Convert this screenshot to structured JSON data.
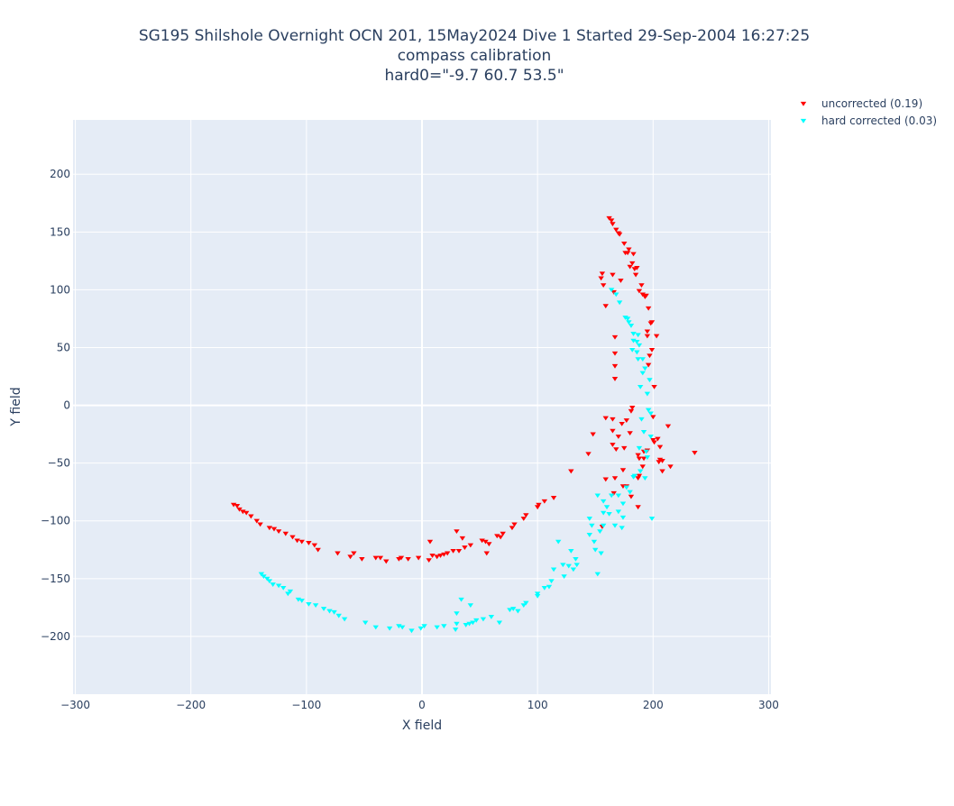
{
  "chart_data": {
    "type": "scatter",
    "title_lines": [
      "SG195 Shilshole Overnight OCN 201, 15May2024 Dive 1 Started 29-Sep-2004 16:27:25",
      "compass calibration",
      "hard0=\"-9.7 60.7 53.5\""
    ],
    "xlabel": "X field",
    "ylabel": "Y field",
    "xlim": [
      -302,
      302
    ],
    "ylim": [
      -250,
      247
    ],
    "xticks": [
      -300,
      -200,
      -100,
      0,
      100,
      200,
      300
    ],
    "yticks": [
      -200,
      -150,
      -100,
      -50,
      0,
      50,
      100,
      150,
      200
    ],
    "xtick_labels": [
      "−300",
      "−200",
      "−100",
      "0",
      "100",
      "200",
      "300"
    ],
    "ytick_labels": [
      "−200",
      "−150",
      "−100",
      "−50",
      "0",
      "50",
      "100",
      "150",
      "200"
    ],
    "grid": true,
    "legend_position": "top-right",
    "marker": "triangle-down",
    "colors": {
      "plot_bg": "#e5ecf6",
      "grid": "#ffffff",
      "text": "#2a3f5f"
    },
    "series": [
      {
        "name": "uncorrected (0.19)",
        "color": "#ff0000",
        "points": [
          [
            -163,
            -86
          ],
          [
            -160,
            -87
          ],
          [
            -158,
            -90
          ],
          [
            -155,
            -92
          ],
          [
            -152,
            -93
          ],
          [
            -148,
            -96
          ],
          [
            -143,
            -100
          ],
          [
            -140,
            -103
          ],
          [
            -132,
            -106
          ],
          [
            -128,
            -107
          ],
          [
            -124,
            -109
          ],
          [
            -118,
            -111
          ],
          [
            -112,
            -114
          ],
          [
            -108,
            -117
          ],
          [
            -104,
            -118
          ],
          [
            -98,
            -119
          ],
          [
            -93,
            -121
          ],
          [
            -90,
            -125
          ],
          [
            -73,
            -128
          ],
          [
            -62,
            -131
          ],
          [
            -59,
            -128
          ],
          [
            -52,
            -133
          ],
          [
            -40,
            -132
          ],
          [
            -36,
            -132
          ],
          [
            -31,
            -135
          ],
          [
            -20,
            -133
          ],
          [
            -18,
            -132
          ],
          [
            -12,
            -133
          ],
          [
            -3,
            -132
          ],
          [
            6,
            -134
          ],
          [
            7,
            -118
          ],
          [
            9,
            -130
          ],
          [
            13,
            -131
          ],
          [
            16,
            -130
          ],
          [
            19,
            -129
          ],
          [
            22,
            -128
          ],
          [
            27,
            -126
          ],
          [
            30,
            -109
          ],
          [
            32,
            -126
          ],
          [
            35,
            -115
          ],
          [
            37,
            -123
          ],
          [
            42,
            -121
          ],
          [
            52,
            -117
          ],
          [
            55,
            -118
          ],
          [
            56,
            -128
          ],
          [
            58,
            -120
          ],
          [
            65,
            -113
          ],
          [
            68,
            -114
          ],
          [
            70,
            -111
          ],
          [
            78,
            -106
          ],
          [
            80,
            -103
          ],
          [
            88,
            -98
          ],
          [
            90,
            -95
          ],
          [
            100,
            -88
          ],
          [
            101,
            -86
          ],
          [
            106,
            -83
          ],
          [
            114,
            -80
          ],
          [
            129,
            -57
          ],
          [
            144,
            -42
          ],
          [
            148,
            -25
          ],
          [
            156,
            -105
          ],
          [
            155,
            110
          ],
          [
            156,
            114
          ],
          [
            157,
            104
          ],
          [
            159,
            86
          ],
          [
            159,
            -64
          ],
          [
            159,
            -11
          ],
          [
            162,
            162
          ],
          [
            164,
            160
          ],
          [
            165,
            157
          ],
          [
            165,
            113
          ],
          [
            165,
            -34
          ],
          [
            165,
            -22
          ],
          [
            165,
            -12
          ],
          [
            166,
            -76
          ],
          [
            166,
            98
          ],
          [
            167,
            59
          ],
          [
            167,
            45
          ],
          [
            167,
            34
          ],
          [
            167,
            23
          ],
          [
            167,
            -63
          ],
          [
            168,
            -38
          ],
          [
            168,
            152
          ],
          [
            170,
            149
          ],
          [
            170,
            -27
          ],
          [
            171,
            148
          ],
          [
            172,
            108
          ],
          [
            173,
            -16
          ],
          [
            174,
            -70
          ],
          [
            174,
            -56
          ],
          [
            175,
            -37
          ],
          [
            175,
            140
          ],
          [
            176,
            132
          ],
          [
            177,
            -70
          ],
          [
            177,
            -13
          ],
          [
            178,
            132
          ],
          [
            179,
            135
          ],
          [
            180,
            120
          ],
          [
            180,
            -24
          ],
          [
            181,
            -79
          ],
          [
            181,
            -5
          ],
          [
            182,
            123
          ],
          [
            182,
            -2
          ],
          [
            183,
            131
          ],
          [
            184,
            118
          ],
          [
            185,
            113
          ],
          [
            186,
            119
          ],
          [
            187,
            -43
          ],
          [
            187,
            -63
          ],
          [
            187,
            -88
          ],
          [
            188,
            -46
          ],
          [
            188,
            -61
          ],
          [
            188,
            99
          ],
          [
            190,
            104
          ],
          [
            191,
            -53
          ],
          [
            191,
            96
          ],
          [
            192,
            -40
          ],
          [
            192,
            -46
          ],
          [
            193,
            94
          ],
          [
            194,
            95
          ],
          [
            195,
            64
          ],
          [
            195,
            60
          ],
          [
            195,
            -39
          ],
          [
            196,
            84
          ],
          [
            196,
            35
          ],
          [
            197,
            43
          ],
          [
            198,
            71
          ],
          [
            199,
            48
          ],
          [
            199,
            72
          ],
          [
            200,
            -10
          ],
          [
            200,
            -30
          ],
          [
            201,
            16
          ],
          [
            201,
            -32
          ],
          [
            203,
            60
          ],
          [
            204,
            -29
          ],
          [
            205,
            -49
          ],
          [
            206,
            -47
          ],
          [
            206,
            -36
          ],
          [
            208,
            -48
          ],
          [
            208,
            -57
          ],
          [
            213,
            -18
          ],
          [
            215,
            -53
          ],
          [
            236,
            -41
          ]
        ]
      },
      {
        "name": "hard corrected (0.03)",
        "color": "#00ffff",
        "points": [
          [
            -139,
            -146
          ],
          [
            -137,
            -148
          ],
          [
            -134,
            -150
          ],
          [
            -132,
            -152
          ],
          [
            -129,
            -155
          ],
          [
            -124,
            -156
          ],
          [
            -120,
            -158
          ],
          [
            -116,
            -163
          ],
          [
            -114,
            -161
          ],
          [
            -107,
            -168
          ],
          [
            -104,
            -169
          ],
          [
            -98,
            -172
          ],
          [
            -92,
            -173
          ],
          [
            -85,
            -176
          ],
          [
            -80,
            -178
          ],
          [
            -76,
            -179
          ],
          [
            -72,
            -182
          ],
          [
            -67,
            -185
          ],
          [
            -49,
            -188
          ],
          [
            -40,
            -192
          ],
          [
            -28,
            -193
          ],
          [
            -20,
            -191
          ],
          [
            -17,
            -192
          ],
          [
            -9,
            -195
          ],
          [
            -1,
            -193
          ],
          [
            2,
            -191
          ],
          [
            13,
            -192
          ],
          [
            19,
            -191
          ],
          [
            29,
            -194
          ],
          [
            30,
            -189
          ],
          [
            30,
            -180
          ],
          [
            34,
            -168
          ],
          [
            38,
            -190
          ],
          [
            41,
            -189
          ],
          [
            42,
            -173
          ],
          [
            44,
            -188
          ],
          [
            47,
            -186
          ],
          [
            53,
            -185
          ],
          [
            60,
            -183
          ],
          [
            67,
            -188
          ],
          [
            76,
            -177
          ],
          [
            79,
            -176
          ],
          [
            83,
            -178
          ],
          [
            88,
            -173
          ],
          [
            90,
            -171
          ],
          [
            100,
            -165
          ],
          [
            100,
            -163
          ],
          [
            106,
            -158
          ],
          [
            110,
            -157
          ],
          [
            112,
            -152
          ],
          [
            114,
            -142
          ],
          [
            118,
            -118
          ],
          [
            122,
            -138
          ],
          [
            123,
            -148
          ],
          [
            127,
            -139
          ],
          [
            129,
            -126
          ],
          [
            131,
            -142
          ],
          [
            133,
            -133
          ],
          [
            134,
            -138
          ],
          [
            145,
            -112
          ],
          [
            145,
            -98
          ],
          [
            147,
            -104
          ],
          [
            149,
            -118
          ],
          [
            150,
            -125
          ],
          [
            152,
            -146
          ],
          [
            152,
            -78
          ],
          [
            154,
            -109
          ],
          [
            155,
            -128
          ],
          [
            157,
            -104
          ],
          [
            157,
            -83
          ],
          [
            157,
            -93
          ],
          [
            160,
            -88
          ],
          [
            162,
            -94
          ],
          [
            164,
            -78
          ],
          [
            164,
            100
          ],
          [
            167,
            -104
          ],
          [
            168,
            96
          ],
          [
            170,
            -92
          ],
          [
            170,
            -78
          ],
          [
            171,
            89
          ],
          [
            173,
            -106
          ],
          [
            174,
            -97
          ],
          [
            174,
            -85
          ],
          [
            176,
            76
          ],
          [
            177,
            -71
          ],
          [
            178,
            75
          ],
          [
            179,
            72
          ],
          [
            180,
            -75
          ],
          [
            181,
            69
          ],
          [
            182,
            48
          ],
          [
            183,
            56
          ],
          [
            183,
            62
          ],
          [
            183,
            -62
          ],
          [
            184,
            -61
          ],
          [
            186,
            55
          ],
          [
            186,
            46
          ],
          [
            187,
            40
          ],
          [
            187,
            61
          ],
          [
            188,
            -37
          ],
          [
            188,
            52
          ],
          [
            189,
            16
          ],
          [
            189,
            -57
          ],
          [
            190,
            -12
          ],
          [
            191,
            28
          ],
          [
            191,
            40
          ],
          [
            192,
            -23
          ],
          [
            193,
            -63
          ],
          [
            193,
            32
          ],
          [
            194,
            -40
          ],
          [
            195,
            10
          ],
          [
            195,
            -45
          ],
          [
            196,
            -4
          ],
          [
            197,
            22
          ],
          [
            198,
            -7
          ],
          [
            198,
            -27
          ],
          [
            199,
            -98
          ]
        ]
      }
    ]
  },
  "legend": {
    "items": [
      {
        "label": "uncorrected (0.19)",
        "color": "#ff0000"
      },
      {
        "label": "hard corrected (0.03)",
        "color": "#00ffff"
      }
    ]
  }
}
